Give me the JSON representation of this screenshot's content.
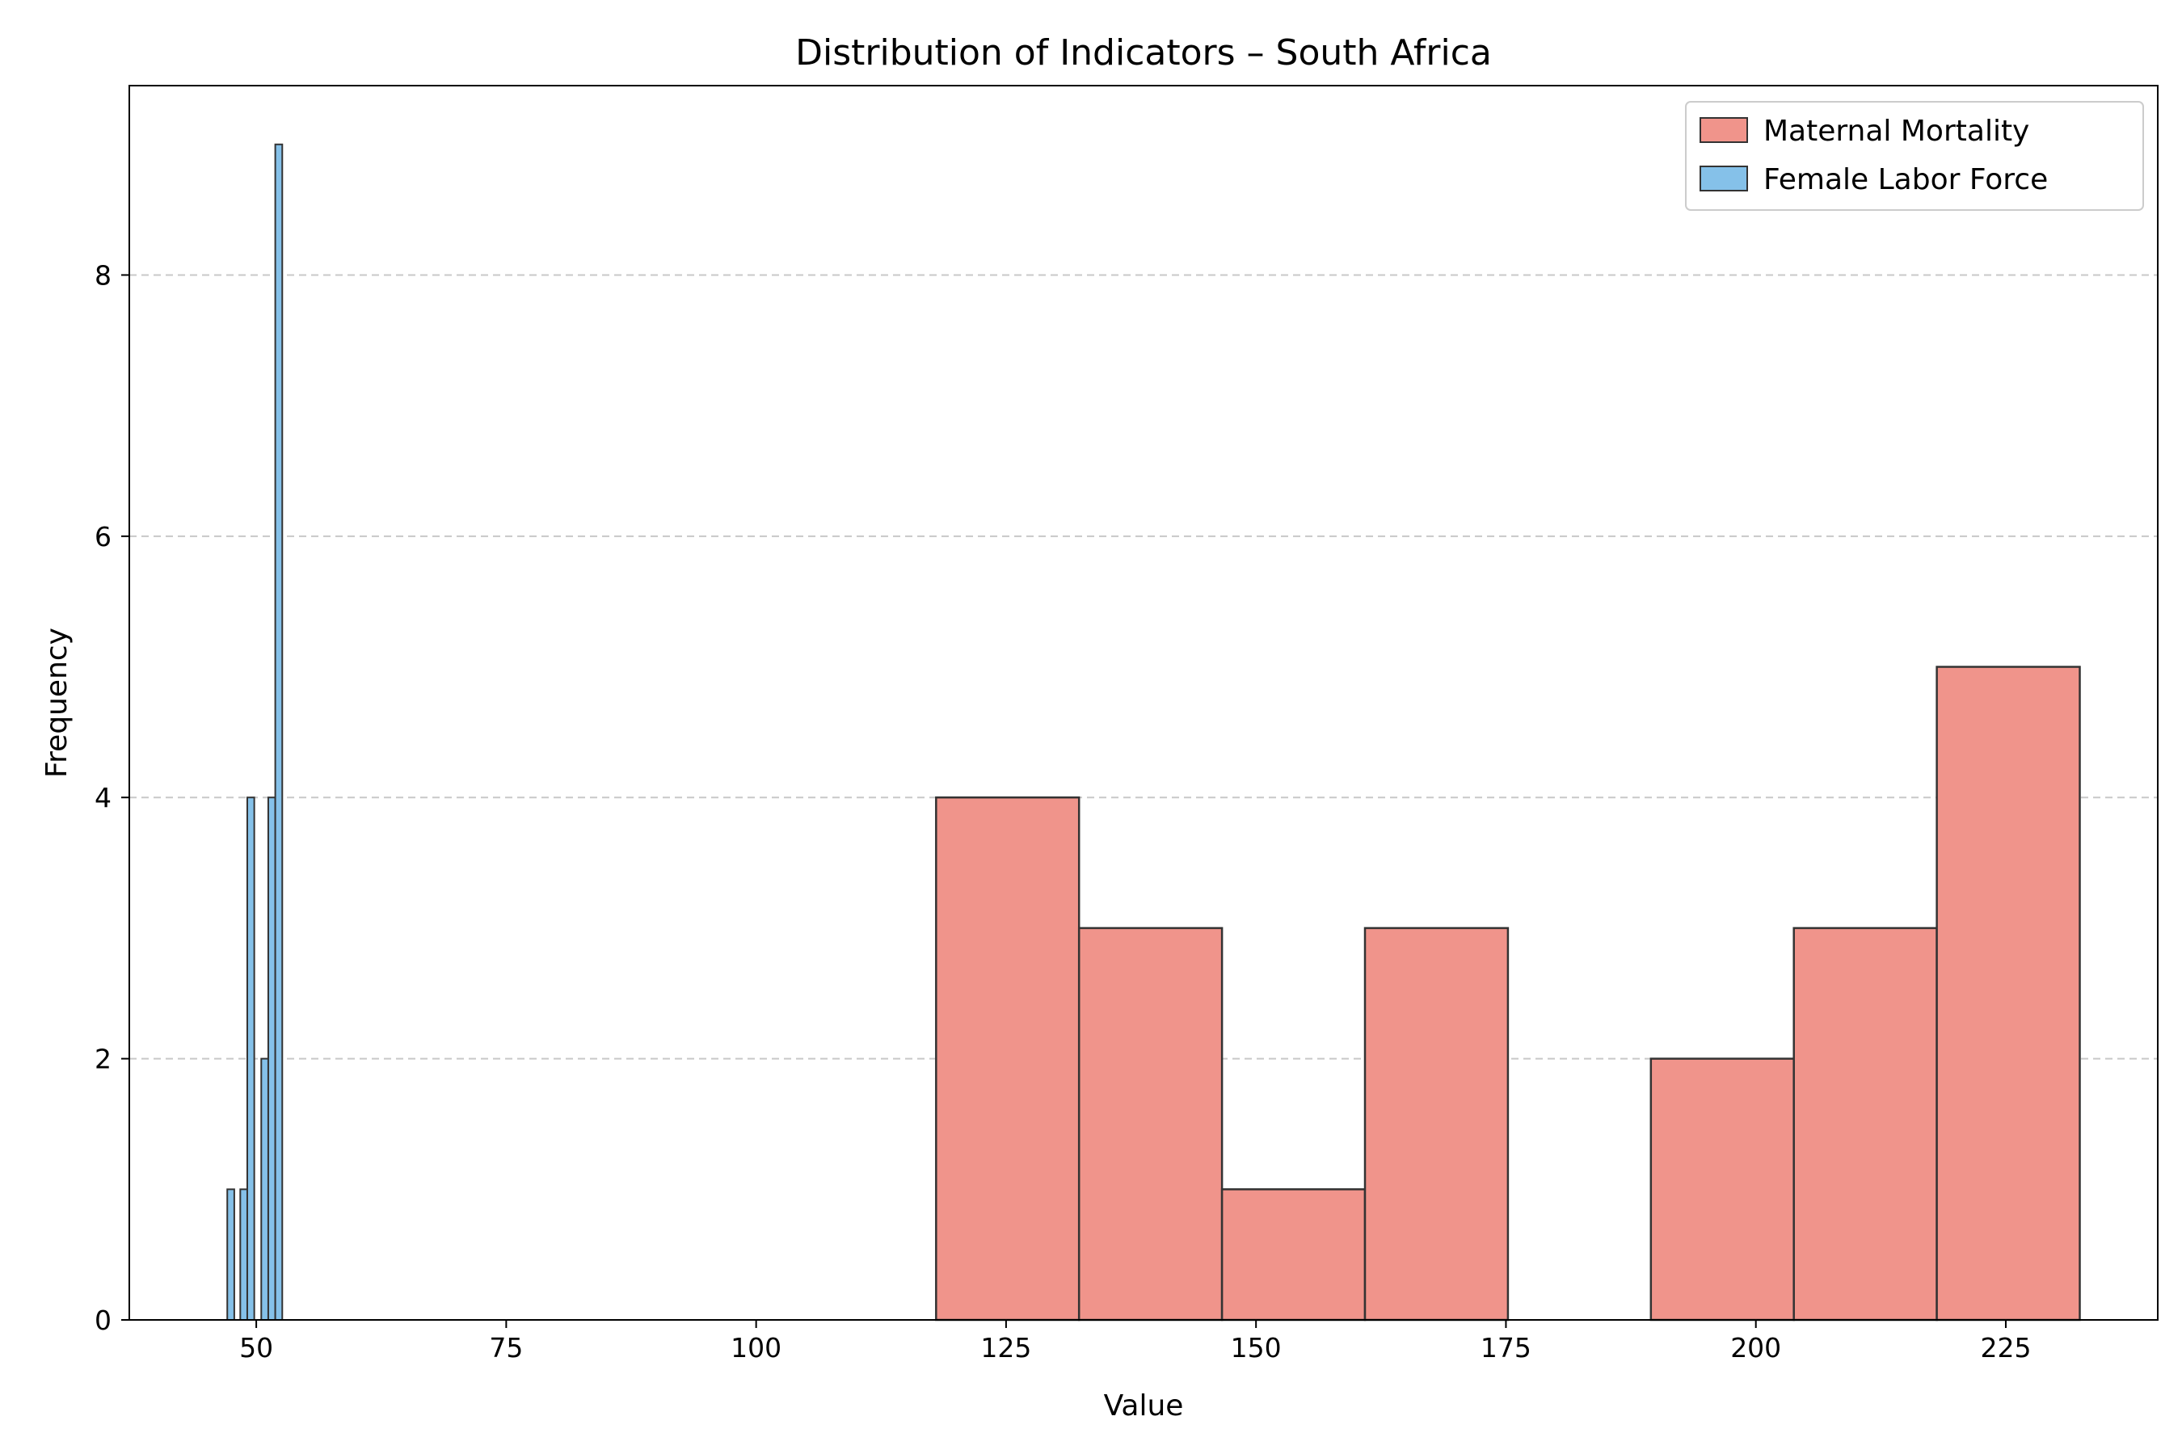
{
  "chart_data": {
    "type": "histogram",
    "title": "Distribution of Indicators – South Africa",
    "xlabel": "Value",
    "ylabel": "Frequency",
    "xlim": [
      37.3,
      240.2
    ],
    "ylim": [
      0,
      9.45
    ],
    "xticks": [
      50,
      75,
      100,
      125,
      150,
      175,
      200,
      225
    ],
    "yticks": [
      0,
      2,
      4,
      6,
      8
    ],
    "grid": "y-dashed",
    "legend_position": "top-right",
    "series": [
      {
        "name": "Maternal Mortality",
        "color": "#f0948b",
        "bins": [
          {
            "x0": 118.0,
            "x1": 132.3,
            "count": 4
          },
          {
            "x0": 132.3,
            "x1": 146.6,
            "count": 3
          },
          {
            "x0": 146.6,
            "x1": 160.9,
            "count": 1
          },
          {
            "x0": 160.9,
            "x1": 175.2,
            "count": 3
          },
          {
            "x0": 175.2,
            "x1": 189.5,
            "count": 0
          },
          {
            "x0": 189.5,
            "x1": 203.8,
            "count": 2
          },
          {
            "x0": 203.8,
            "x1": 218.1,
            "count": 3
          },
          {
            "x0": 218.1,
            "x1": 232.4,
            "count": 5
          }
        ]
      },
      {
        "name": "Female Labor Force",
        "color": "#85c1e9",
        "bins": [
          {
            "x0": 47.1,
            "x1": 47.8,
            "count": 1
          },
          {
            "x0": 47.8,
            "x1": 48.4,
            "count": 0
          },
          {
            "x0": 48.4,
            "x1": 49.1,
            "count": 1
          },
          {
            "x0": 49.1,
            "x1": 49.8,
            "count": 4
          },
          {
            "x0": 49.8,
            "x1": 50.5,
            "count": 0
          },
          {
            "x0": 50.5,
            "x1": 51.2,
            "count": 2
          },
          {
            "x0": 51.2,
            "x1": 51.9,
            "count": 4
          },
          {
            "x0": 51.9,
            "x1": 52.6,
            "count": 9
          }
        ]
      }
    ]
  }
}
